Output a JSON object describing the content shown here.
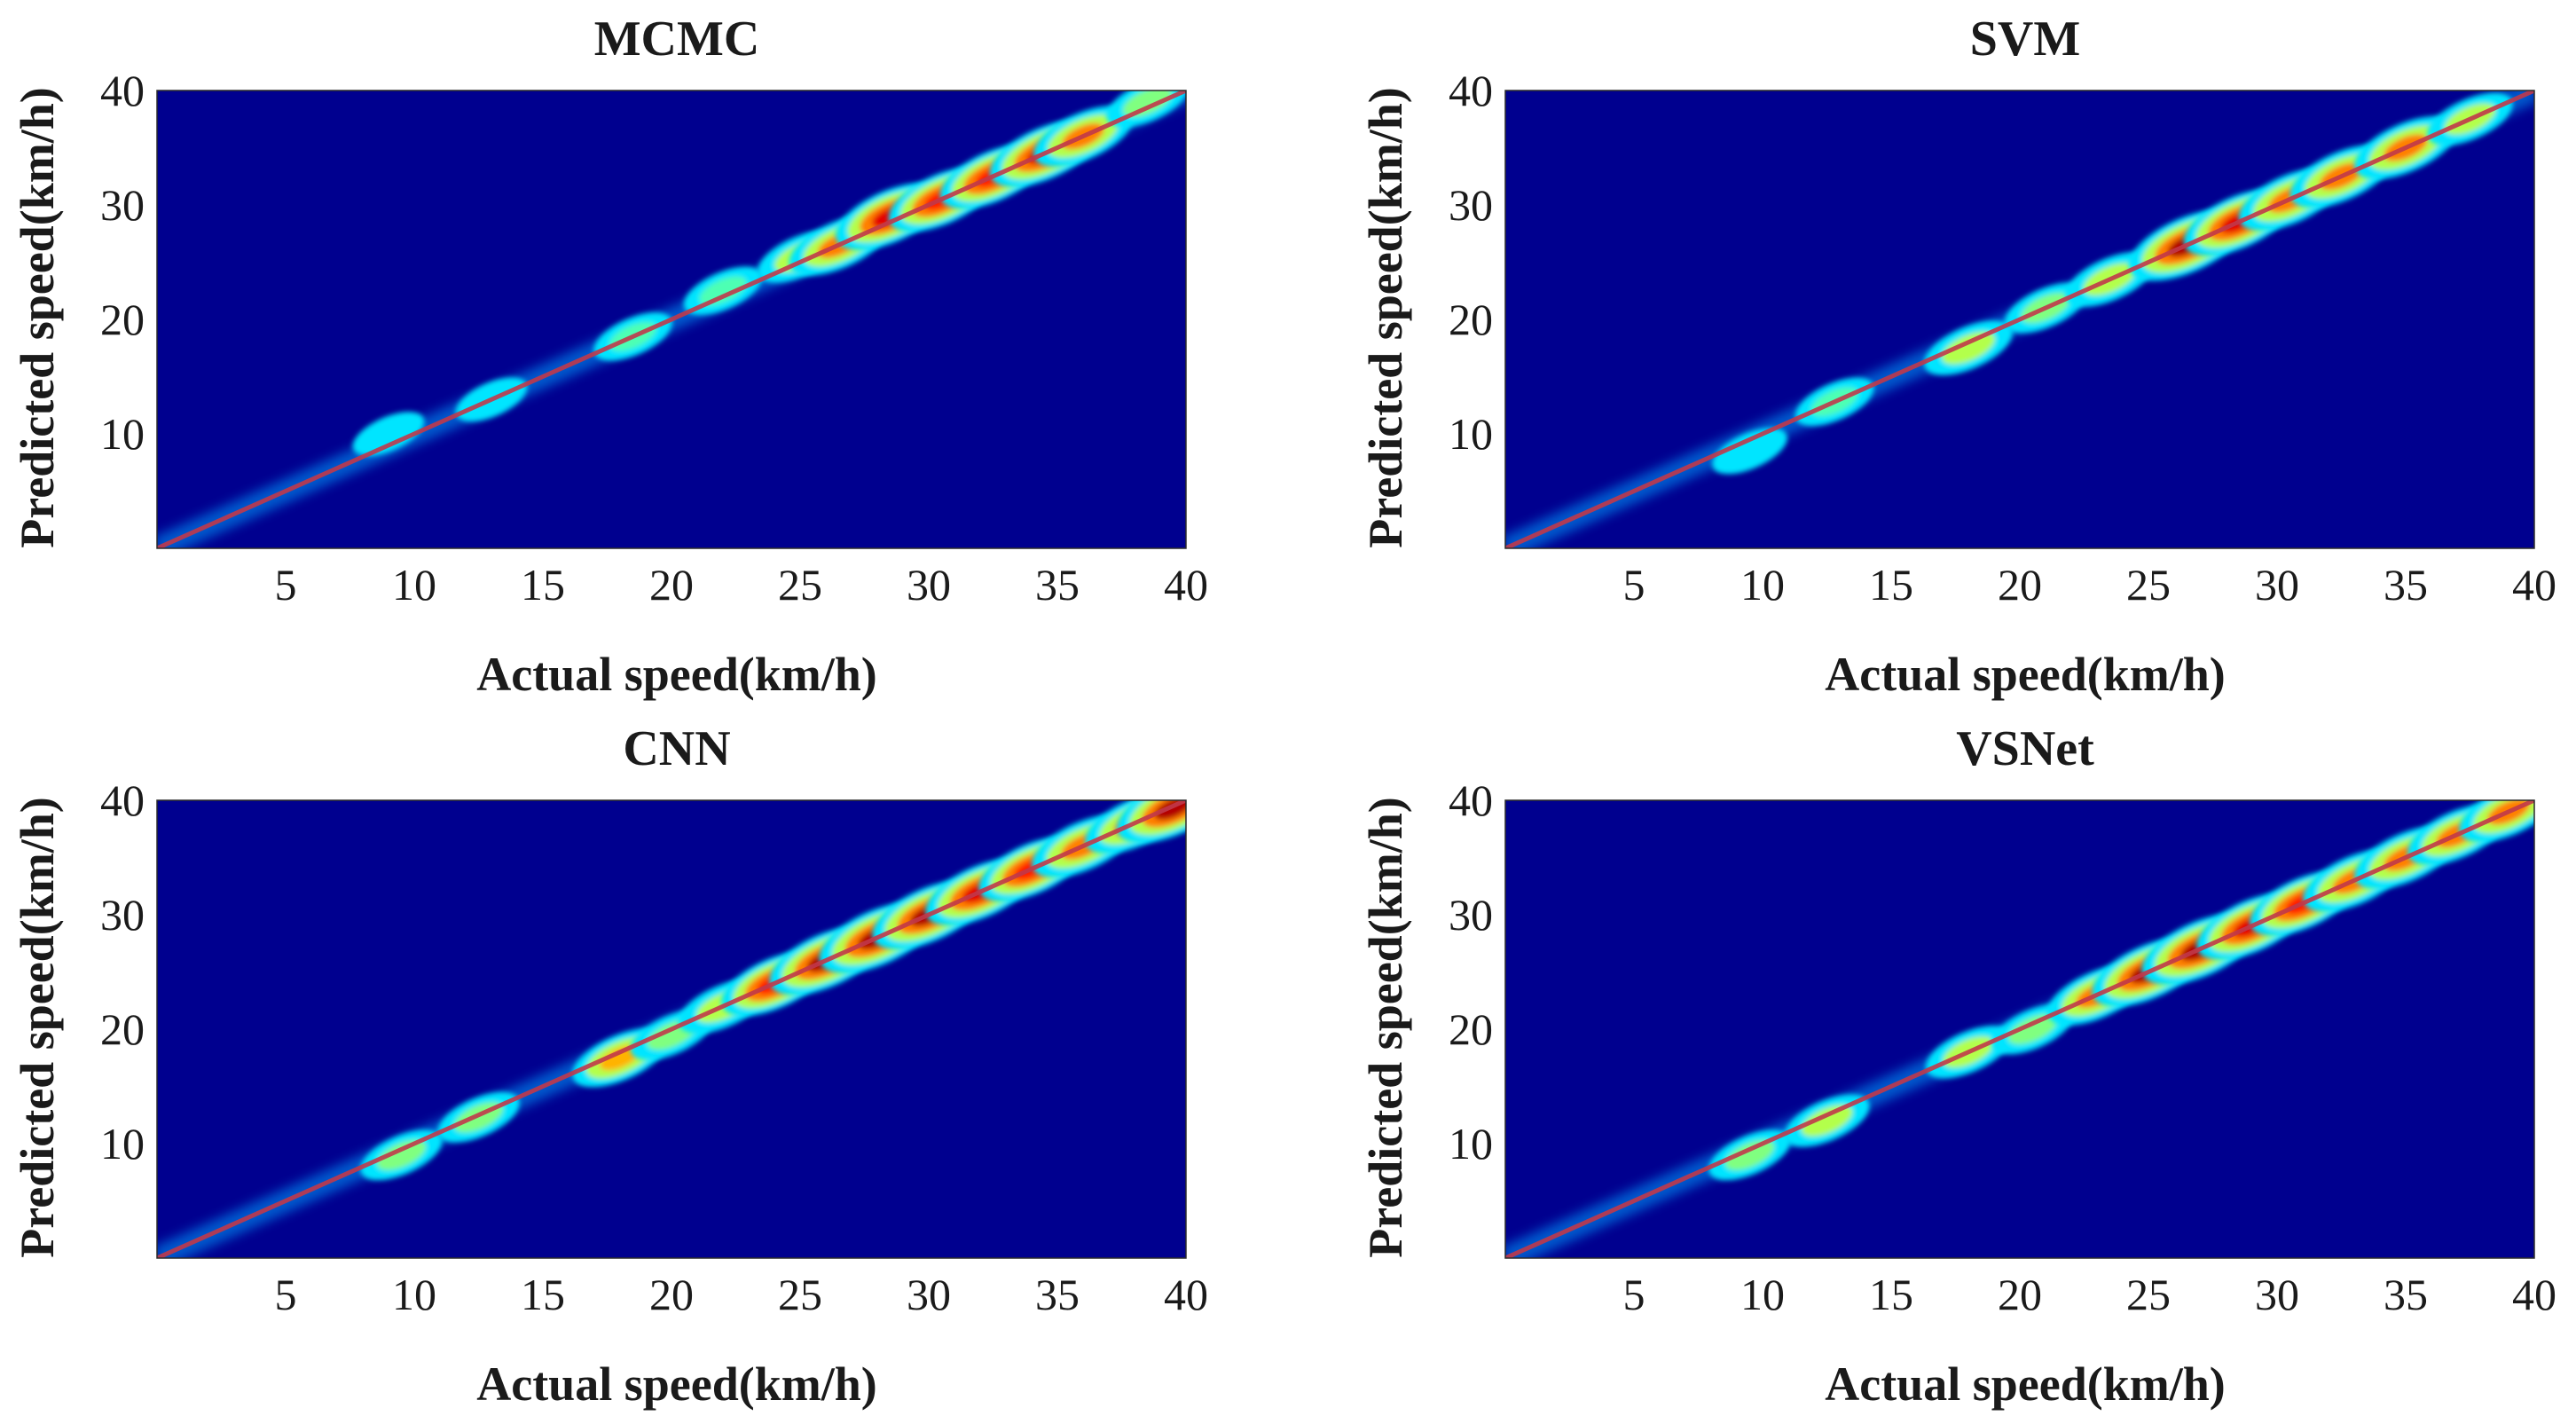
{
  "figure": {
    "colors": {
      "background": "#00008f",
      "diagonal": "#c0394a",
      "colormap": "jet"
    }
  },
  "chart_data": [
    {
      "type": "heatmap",
      "title": "MCMC",
      "xlabel": "Actual speed(km/h)",
      "ylabel": "Predicted speed(km/h)",
      "xlim": [
        0,
        40
      ],
      "ylim": [
        0,
        40
      ],
      "xticks": [
        5,
        10,
        15,
        20,
        25,
        30,
        35,
        40
      ],
      "yticks": [
        10,
        20,
        30,
        40
      ],
      "diagonal": [
        [
          0,
          0
        ],
        [
          40,
          40
        ]
      ],
      "hotspots": [
        {
          "x": 9,
          "y": 10,
          "v": 0.35
        },
        {
          "x": 13,
          "y": 13,
          "v": 0.35
        },
        {
          "x": 18.5,
          "y": 18.5,
          "v": 0.45
        },
        {
          "x": 22,
          "y": 22.5,
          "v": 0.45
        },
        {
          "x": 25,
          "y": 25.5,
          "v": 0.55
        },
        {
          "x": 26.5,
          "y": 26.5,
          "v": 0.75
        },
        {
          "x": 28.5,
          "y": 29,
          "v": 0.9
        },
        {
          "x": 30.5,
          "y": 30.5,
          "v": 0.85
        },
        {
          "x": 32.5,
          "y": 32.5,
          "v": 0.85
        },
        {
          "x": 34.5,
          "y": 34.5,
          "v": 0.9
        },
        {
          "x": 36,
          "y": 36,
          "v": 0.75
        },
        {
          "x": 38.5,
          "y": 39,
          "v": 0.5
        }
      ]
    },
    {
      "type": "heatmap",
      "title": "SVM",
      "xlabel": "Actual speed(km/h)",
      "ylabel": "Predicted speed(km/h)",
      "xlim": [
        0,
        40
      ],
      "ylim": [
        0,
        40
      ],
      "xticks": [
        5,
        10,
        15,
        20,
        25,
        30,
        35,
        40
      ],
      "yticks": [
        10,
        20,
        30,
        40
      ],
      "diagonal": [
        [
          0,
          0
        ],
        [
          40,
          40
        ]
      ],
      "hotspots": [
        {
          "x": 9.5,
          "y": 8.5,
          "v": 0.4
        },
        {
          "x": 12.8,
          "y": 12.8,
          "v": 0.45
        },
        {
          "x": 18,
          "y": 17.5,
          "v": 0.6
        },
        {
          "x": 21,
          "y": 21,
          "v": 0.5
        },
        {
          "x": 23.5,
          "y": 23.5,
          "v": 0.6
        },
        {
          "x": 26.5,
          "y": 26.5,
          "v": 1.0
        },
        {
          "x": 28.5,
          "y": 28.5,
          "v": 0.9
        },
        {
          "x": 30.5,
          "y": 30.5,
          "v": 0.8
        },
        {
          "x": 32.5,
          "y": 32.5,
          "v": 0.8
        },
        {
          "x": 35,
          "y": 35,
          "v": 0.8
        },
        {
          "x": 37.5,
          "y": 37.5,
          "v": 0.55
        }
      ]
    },
    {
      "type": "heatmap",
      "title": "CNN",
      "xlabel": "Actual speed(km/h)",
      "ylabel": "Predicted speed(km/h)",
      "xlim": [
        0,
        40
      ],
      "ylim": [
        0,
        40
      ],
      "xticks": [
        5,
        10,
        15,
        20,
        25,
        30,
        35,
        40
      ],
      "yticks": [
        10,
        20,
        30,
        40
      ],
      "diagonal": [
        [
          0,
          0
        ],
        [
          40,
          40
        ]
      ],
      "hotspots": [
        {
          "x": 9.5,
          "y": 9,
          "v": 0.5
        },
        {
          "x": 12.5,
          "y": 12.3,
          "v": 0.5
        },
        {
          "x": 18,
          "y": 17.5,
          "v": 0.7
        },
        {
          "x": 20,
          "y": 19.5,
          "v": 0.5
        },
        {
          "x": 22,
          "y": 22,
          "v": 0.6
        },
        {
          "x": 24,
          "y": 24,
          "v": 0.85
        },
        {
          "x": 26,
          "y": 26,
          "v": 0.95
        },
        {
          "x": 28,
          "y": 28,
          "v": 1.0
        },
        {
          "x": 30,
          "y": 30,
          "v": 0.95
        },
        {
          "x": 32,
          "y": 32,
          "v": 0.9
        },
        {
          "x": 34,
          "y": 34,
          "v": 0.85
        },
        {
          "x": 36,
          "y": 36,
          "v": 0.8
        },
        {
          "x": 38,
          "y": 38,
          "v": 0.75
        },
        {
          "x": 39.5,
          "y": 39.3,
          "v": 0.95
        }
      ]
    },
    {
      "type": "heatmap",
      "title": "VSNet",
      "xlabel": "Actual speed(km/h)",
      "ylabel": "Predicted speed(km/h)",
      "xlim": [
        0,
        40
      ],
      "ylim": [
        0,
        40
      ],
      "xticks": [
        5,
        10,
        15,
        20,
        25,
        30,
        35,
        40
      ],
      "yticks": [
        10,
        20,
        30,
        40
      ],
      "diagonal": [
        [
          0,
          0
        ],
        [
          40,
          40
        ]
      ],
      "hotspots": [
        {
          "x": 9.5,
          "y": 9,
          "v": 0.5
        },
        {
          "x": 12.5,
          "y": 12,
          "v": 0.55
        },
        {
          "x": 18,
          "y": 18,
          "v": 0.55
        },
        {
          "x": 20.5,
          "y": 20,
          "v": 0.5
        },
        {
          "x": 23,
          "y": 23,
          "v": 0.75
        },
        {
          "x": 25,
          "y": 25,
          "v": 0.95
        },
        {
          "x": 27,
          "y": 27,
          "v": 1.0
        },
        {
          "x": 29,
          "y": 29,
          "v": 0.9
        },
        {
          "x": 31,
          "y": 31,
          "v": 0.85
        },
        {
          "x": 33,
          "y": 33,
          "v": 0.8
        },
        {
          "x": 35,
          "y": 35,
          "v": 0.8
        },
        {
          "x": 37,
          "y": 37,
          "v": 0.75
        },
        {
          "x": 39,
          "y": 39,
          "v": 0.75
        }
      ]
    }
  ]
}
